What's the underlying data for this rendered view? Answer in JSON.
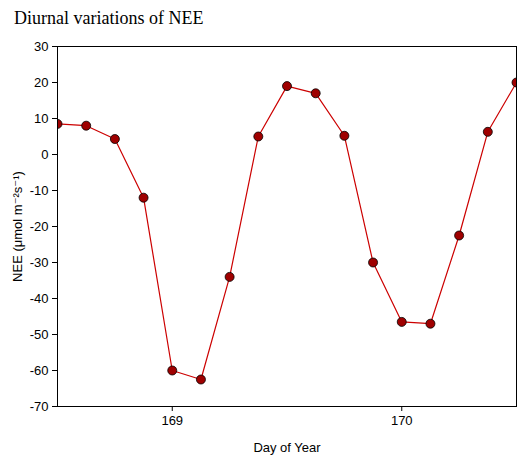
{
  "chart_data": {
    "type": "line",
    "title": "Diurnal variations of NEE",
    "x_label": "Day of Year",
    "y_label": "NEE (μmol m⁻²s⁻¹)",
    "x": [
      168.5,
      168.625,
      168.75,
      168.875,
      169,
      169.125,
      169.25,
      169.375,
      169.5,
      169.625,
      169.75,
      169.875,
      170,
      170.125,
      170.25,
      170.375,
      170.5
    ],
    "series": [
      {
        "name": "NEE",
        "color": "#cc0000",
        "marker": "circle",
        "values": [
          8.5,
          8,
          4.3,
          -12,
          -60,
          -62.5,
          -34,
          5,
          19,
          17,
          5.2,
          -30,
          -46.5,
          -47,
          -22.5,
          6.3,
          20
        ]
      }
    ],
    "xlim": [
      168.5,
      170.5
    ],
    "xticks": [
      169,
      170
    ],
    "ylim": [
      -70,
      30
    ],
    "yticks": [
      -70,
      -60,
      -50,
      -40,
      -30,
      -20,
      -10,
      0,
      10,
      20,
      30
    ],
    "grid": false
  }
}
